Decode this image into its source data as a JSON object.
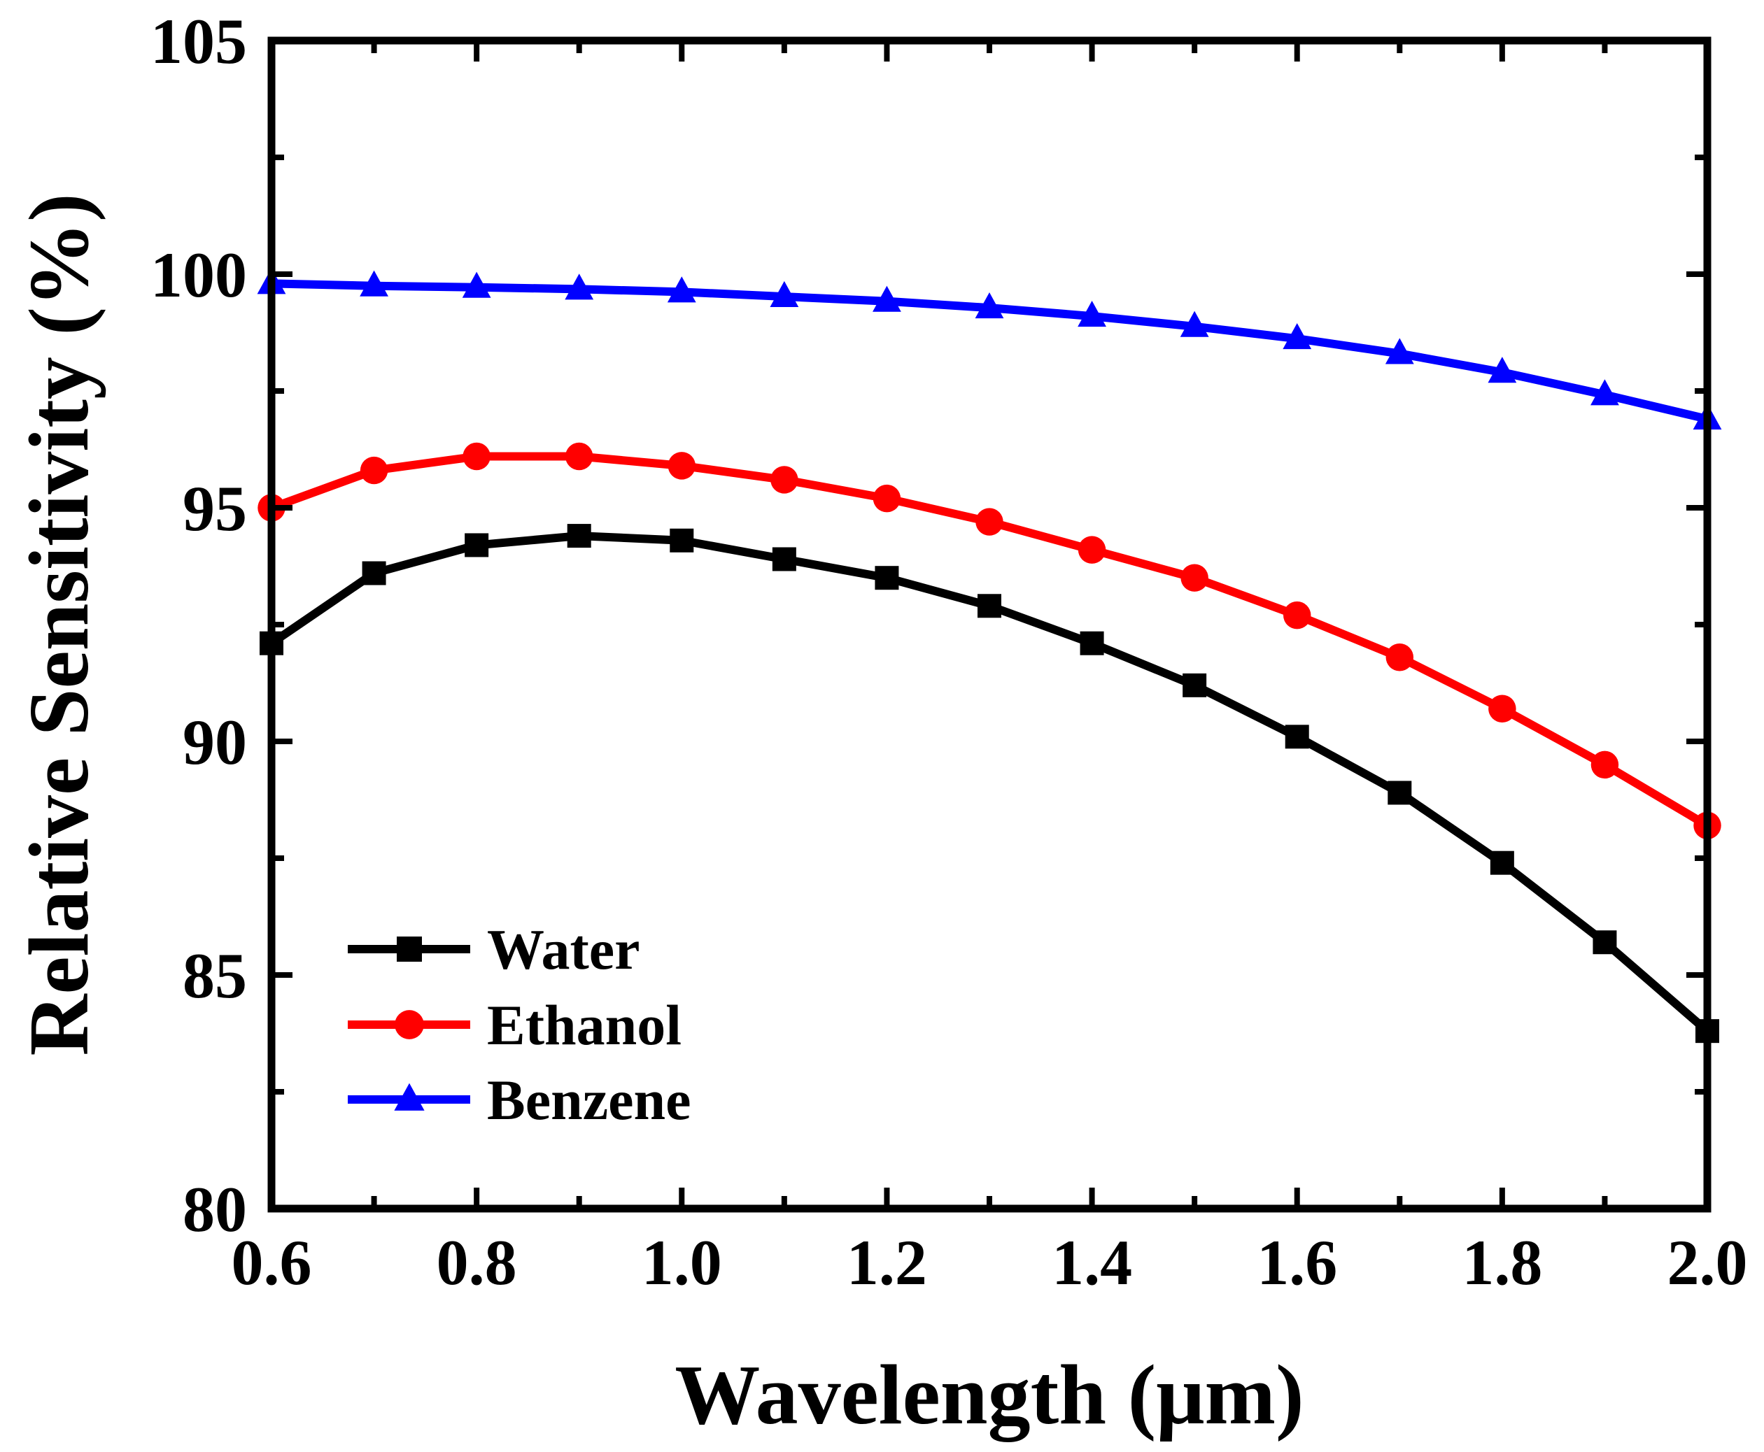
{
  "chart_data": {
    "type": "line",
    "title": "",
    "xlabel": "Wavelength (μm)",
    "ylabel": "Relative Sensitivity (%)",
    "xlim": [
      0.6,
      2.0
    ],
    "ylim": [
      80,
      105
    ],
    "x_ticks": [
      "0.6",
      "0.8",
      "1.0",
      "1.2",
      "1.4",
      "1.6",
      "1.8",
      "2.0"
    ],
    "y_ticks": [
      "80",
      "85",
      "90",
      "95",
      "100",
      "105"
    ],
    "grid": false,
    "legend_position": "bottom-left",
    "x": [
      0.6,
      0.7,
      0.8,
      0.9,
      1.0,
      1.1,
      1.2,
      1.3,
      1.4,
      1.5,
      1.6,
      1.7,
      1.8,
      1.9,
      2.0
    ],
    "series": [
      {
        "name": "Water",
        "color": "#000000",
        "marker": "square",
        "values": [
          92.1,
          93.6,
          94.2,
          94.4,
          94.3,
          93.9,
          93.5,
          92.9,
          92.1,
          91.2,
          90.1,
          88.9,
          87.4,
          85.7,
          83.8
        ]
      },
      {
        "name": "Ethanol",
        "color": "#ff0000",
        "marker": "circle",
        "values": [
          95.0,
          95.8,
          96.1,
          96.1,
          95.9,
          95.6,
          95.2,
          94.7,
          94.1,
          93.5,
          92.7,
          91.8,
          90.7,
          89.5,
          88.2
        ]
      },
      {
        "name": "Benzene",
        "color": "#0000ff",
        "marker": "triangle",
        "values": [
          99.8,
          99.75,
          99.72,
          99.68,
          99.62,
          99.52,
          99.42,
          99.28,
          99.1,
          98.88,
          98.62,
          98.3,
          97.9,
          97.42,
          96.9
        ]
      }
    ]
  }
}
